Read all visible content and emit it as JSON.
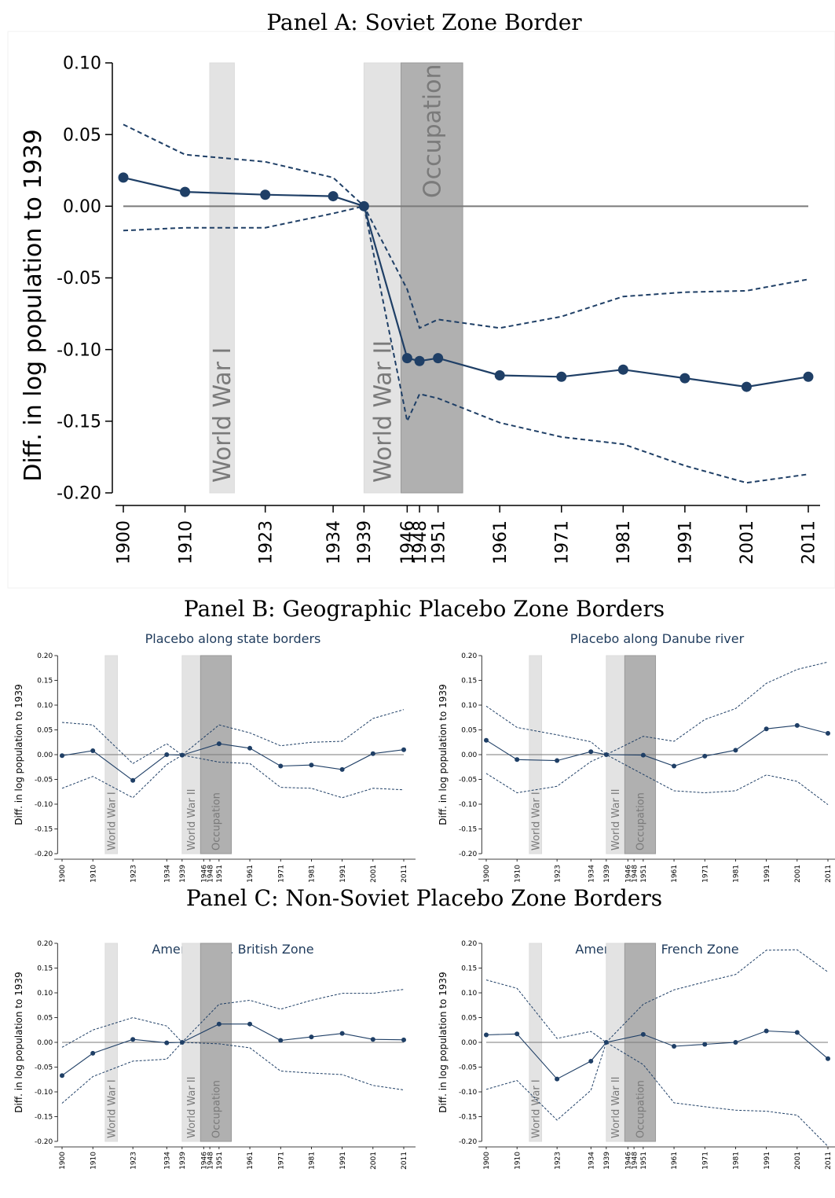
{
  "panels": {
    "a": {
      "title": "Panel A: Soviet Zone Border"
    },
    "b": {
      "title": "Panel B: Geographic Placebo Zone Borders"
    },
    "c": {
      "title": "Panel C: Non-Soviet Placebo Zone Borders"
    }
  },
  "chart_data": [
    {
      "id": "soviet",
      "type": "line",
      "title": "",
      "ylabel": "Diff. in log population to 1939",
      "xlabel": "",
      "ylim": [
        -0.2,
        0.1
      ],
      "yticks": [
        0.1,
        0.05,
        0.0,
        -0.05,
        -0.1,
        -0.15,
        -0.2
      ],
      "x": [
        1900,
        1910,
        1923,
        1934,
        1939,
        1946,
        1948,
        1951,
        1961,
        1971,
        1981,
        1991,
        2001,
        2011
      ],
      "bands": [
        {
          "label": "World War I",
          "from": 1914,
          "to": 1918,
          "shade": "light"
        },
        {
          "label": "World War II",
          "from": 1939,
          "to": 1945,
          "shade": "light"
        },
        {
          "label": "Occupation",
          "from": 1945,
          "to": 1955,
          "shade": "dark"
        }
      ],
      "series": [
        {
          "role": "estimate",
          "values": [
            0.02,
            0.01,
            0.008,
            0.007,
            0.0,
            -0.106,
            -0.108,
            -0.106,
            -0.118,
            -0.119,
            -0.114,
            -0.12,
            -0.126,
            -0.119
          ]
        },
        {
          "role": "upper_ci",
          "values": [
            0.057,
            0.036,
            0.031,
            0.02,
            0.0,
            -0.058,
            -0.085,
            -0.079,
            -0.085,
            -0.077,
            -0.063,
            -0.06,
            -0.059,
            -0.051
          ]
        },
        {
          "role": "lower_ci",
          "values": [
            -0.017,
            -0.015,
            -0.015,
            -0.005,
            0.0,
            -0.15,
            -0.131,
            -0.134,
            -0.151,
            -0.161,
            -0.166,
            -0.181,
            -0.193,
            -0.187
          ]
        }
      ],
      "colors": {
        "line": "#1f3f66",
        "zero": "#7a7a7a",
        "light_band": "#e3e3e3",
        "dark_band": "#b0b0b0"
      }
    },
    {
      "id": "state_borders",
      "type": "line",
      "title": "Placebo along state borders",
      "ylabel": "Diff. in log population to 1939",
      "xlabel": "",
      "ylim": [
        -0.2,
        0.2
      ],
      "yticks": [
        0.2,
        0.15,
        0.1,
        0.05,
        0.0,
        -0.05,
        -0.1,
        -0.15,
        -0.2
      ],
      "x": [
        1900,
        1910,
        1923,
        1934,
        1939,
        1946,
        1948,
        1951,
        1961,
        1971,
        1981,
        1991,
        2001,
        2011
      ],
      "bands": [
        {
          "label": "World War I",
          "from": 1914,
          "to": 1918,
          "shade": "light"
        },
        {
          "label": "World War II",
          "from": 1939,
          "to": 1945,
          "shade": "light"
        },
        {
          "label": "Occupation",
          "from": 1945,
          "to": 1955,
          "shade": "dark"
        }
      ],
      "series": [
        {
          "role": "estimate",
          "x": [
            1900,
            1910,
            1923,
            1934,
            1939,
            1951,
            1961,
            1971,
            1981,
            1991,
            2001,
            2011
          ],
          "values": [
            -0.002,
            0.008,
            -0.052,
            0.0,
            -0.001,
            0.022,
            0.013,
            -0.023,
            -0.021,
            -0.03,
            0.002,
            0.01
          ]
        },
        {
          "role": "upper_ci",
          "x": [
            1900,
            1910,
            1923,
            1934,
            1939,
            1951,
            1961,
            1971,
            1981,
            1991,
            2001,
            2011
          ],
          "values": [
            0.065,
            0.06,
            -0.018,
            0.022,
            -0.001,
            0.06,
            0.044,
            0.018,
            0.025,
            0.027,
            0.073,
            0.091
          ]
        },
        {
          "role": "lower_ci",
          "x": [
            1900,
            1910,
            1923,
            1934,
            1939,
            1951,
            1961,
            1971,
            1981,
            1991,
            2001,
            2011
          ],
          "values": [
            -0.068,
            -0.044,
            -0.087,
            -0.02,
            -0.001,
            -0.015,
            -0.018,
            -0.066,
            -0.068,
            -0.087,
            -0.068,
            -0.071
          ]
        }
      ]
    },
    {
      "id": "danube",
      "type": "line",
      "title": "Placebo along Danube river",
      "ylabel": "Diff. in log population to 1939",
      "xlabel": "",
      "ylim": [
        -0.2,
        0.2
      ],
      "yticks": [
        0.2,
        0.15,
        0.1,
        0.05,
        0.0,
        -0.05,
        -0.1,
        -0.15,
        -0.2
      ],
      "x": [
        1900,
        1910,
        1923,
        1934,
        1939,
        1946,
        1948,
        1951,
        1961,
        1971,
        1981,
        1991,
        2001,
        2011
      ],
      "bands": [
        {
          "label": "World War I",
          "from": 1914,
          "to": 1918,
          "shade": "light"
        },
        {
          "label": "World War II",
          "from": 1939,
          "to": 1945,
          "shade": "light"
        },
        {
          "label": "Occupation",
          "from": 1945,
          "to": 1955,
          "shade": "dark"
        }
      ],
      "series": [
        {
          "role": "estimate",
          "x": [
            1900,
            1910,
            1923,
            1934,
            1939,
            1951,
            1961,
            1971,
            1981,
            1991,
            2001,
            2011
          ],
          "values": [
            0.029,
            -0.01,
            -0.012,
            0.006,
            0.0,
            -0.001,
            -0.023,
            -0.003,
            0.009,
            0.052,
            0.059,
            0.043
          ]
        },
        {
          "role": "upper_ci",
          "x": [
            1900,
            1910,
            1923,
            1934,
            1939,
            1951,
            1961,
            1971,
            1981,
            1991,
            2001,
            2011
          ],
          "values": [
            0.098,
            0.055,
            0.04,
            0.026,
            0.0,
            0.037,
            0.027,
            0.071,
            0.093,
            0.144,
            0.172,
            0.187
          ]
        },
        {
          "role": "lower_ci",
          "x": [
            1900,
            1910,
            1923,
            1934,
            1939,
            1951,
            1961,
            1971,
            1981,
            1991,
            2001,
            2011
          ],
          "values": [
            -0.038,
            -0.077,
            -0.064,
            -0.014,
            0.0,
            -0.04,
            -0.073,
            -0.077,
            -0.073,
            -0.041,
            -0.054,
            -0.101
          ]
        }
      ]
    },
    {
      "id": "us_uk",
      "type": "line",
      "title": "American vs. British Zone",
      "ylabel": "Diff. in log population to 1939",
      "xlabel": "",
      "ylim": [
        -0.2,
        0.2
      ],
      "yticks": [
        0.2,
        0.15,
        0.1,
        0.05,
        0.0,
        -0.05,
        -0.1,
        -0.15,
        -0.2
      ],
      "x": [
        1900,
        1910,
        1923,
        1934,
        1939,
        1946,
        1948,
        1951,
        1961,
        1971,
        1981,
        1991,
        2001,
        2011
      ],
      "bands": [
        {
          "label": "World War I",
          "from": 1914,
          "to": 1918,
          "shade": "light"
        },
        {
          "label": "World War II",
          "from": 1939,
          "to": 1945,
          "shade": "light"
        },
        {
          "label": "Occupation",
          "from": 1945,
          "to": 1955,
          "shade": "dark"
        }
      ],
      "series": [
        {
          "role": "estimate",
          "x": [
            1900,
            1910,
            1923,
            1934,
            1939,
            1951,
            1961,
            1971,
            1981,
            1991,
            2001,
            2011
          ],
          "values": [
            -0.067,
            -0.022,
            0.006,
            -0.001,
            0.0,
            0.037,
            0.037,
            0.004,
            0.011,
            0.018,
            0.006,
            0.005
          ]
        },
        {
          "role": "upper_ci",
          "x": [
            1900,
            1910,
            1923,
            1934,
            1939,
            1951,
            1961,
            1971,
            1981,
            1991,
            2001,
            2011
          ],
          "values": [
            -0.01,
            0.025,
            0.05,
            0.033,
            0.0,
            0.077,
            0.085,
            0.067,
            0.085,
            0.099,
            0.099,
            0.107
          ]
        },
        {
          "role": "lower_ci",
          "x": [
            1900,
            1910,
            1923,
            1934,
            1939,
            1951,
            1961,
            1971,
            1981,
            1991,
            2001,
            2011
          ],
          "values": [
            -0.123,
            -0.069,
            -0.038,
            -0.034,
            0.0,
            -0.003,
            -0.011,
            -0.058,
            -0.062,
            -0.065,
            -0.087,
            -0.096
          ]
        }
      ]
    },
    {
      "id": "us_fr",
      "type": "line",
      "title": "American vs. French Zone",
      "ylabel": "Diff. in log population to 1939",
      "xlabel": "",
      "ylim": [
        -0.2,
        0.2
      ],
      "yticks": [
        0.2,
        0.15,
        0.1,
        0.05,
        0.0,
        -0.05,
        -0.1,
        -0.15,
        -0.2
      ],
      "x": [
        1900,
        1910,
        1923,
        1934,
        1939,
        1946,
        1948,
        1951,
        1961,
        1971,
        1981,
        1991,
        2001,
        2011
      ],
      "bands": [
        {
          "label": "World War I",
          "from": 1914,
          "to": 1918,
          "shade": "light"
        },
        {
          "label": "World War II",
          "from": 1939,
          "to": 1945,
          "shade": "light"
        },
        {
          "label": "Occupation",
          "from": 1945,
          "to": 1955,
          "shade": "dark"
        }
      ],
      "series": [
        {
          "role": "estimate",
          "x": [
            1900,
            1910,
            1923,
            1934,
            1939,
            1951,
            1961,
            1971,
            1981,
            1991,
            2001,
            2011
          ],
          "values": [
            0.015,
            0.017,
            -0.074,
            -0.038,
            0.0,
            0.016,
            -0.008,
            -0.004,
            0.0,
            0.023,
            0.02,
            -0.033
          ]
        },
        {
          "role": "upper_ci",
          "x": [
            1900,
            1910,
            1923,
            1934,
            1939,
            1951,
            1961,
            1971,
            1981,
            1991,
            2001,
            2011
          ],
          "values": [
            0.126,
            0.109,
            0.008,
            0.022,
            0.0,
            0.077,
            0.106,
            0.122,
            0.137,
            0.186,
            0.187,
            0.142
          ]
        },
        {
          "role": "lower_ci",
          "x": [
            1900,
            1910,
            1923,
            1934,
            1939,
            1951,
            1961,
            1971,
            1981,
            1991,
            2001,
            2011
          ],
          "values": [
            -0.095,
            -0.077,
            -0.157,
            -0.097,
            0.0,
            -0.045,
            -0.122,
            -0.13,
            -0.137,
            -0.139,
            -0.147,
            -0.21
          ]
        }
      ]
    }
  ]
}
